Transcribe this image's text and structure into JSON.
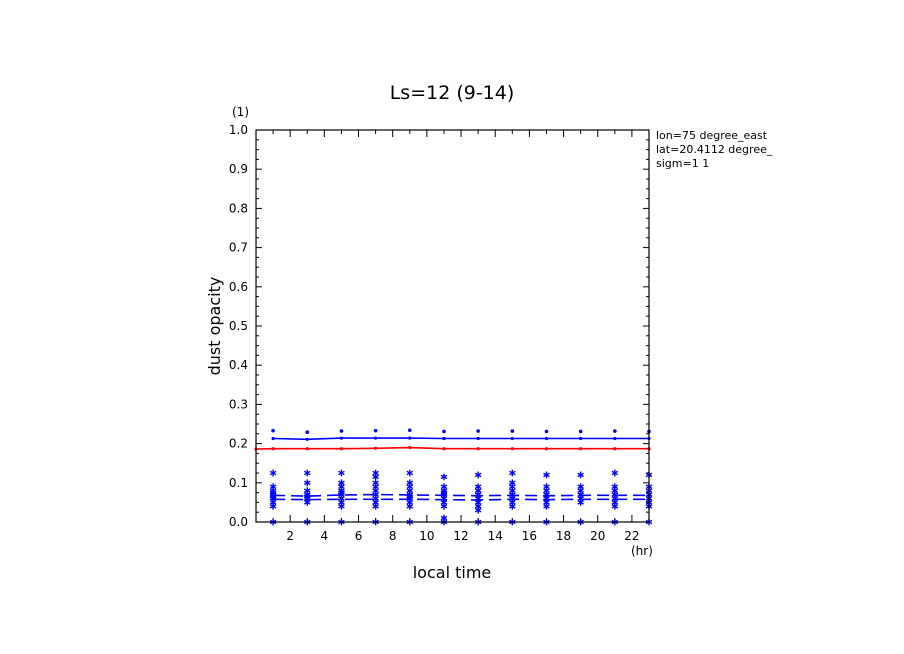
{
  "chart_data": {
    "type": "line",
    "title": "Ls=12 (9-14)",
    "xlabel": "local time",
    "ylabel": "dust opacity",
    "x_unit": "(hr)",
    "y_unit": "(1)",
    "xlim": [
      0,
      23
    ],
    "ylim": [
      0,
      1.0
    ],
    "x_ticks": [
      2,
      4,
      6,
      8,
      10,
      12,
      14,
      16,
      18,
      20,
      22
    ],
    "y_ticks": [
      "0.0",
      "0.1",
      "0.2",
      "0.3",
      "0.4",
      "0.5",
      "0.6",
      "0.7",
      "0.8",
      "0.9",
      "1.0"
    ],
    "info": [
      "lon=75 degree_east",
      "lat=20.4112 degree_",
      "sigm=1 1"
    ],
    "colors": {
      "blue": "#0000ff",
      "red": "#ff0000"
    },
    "series": [
      {
        "color": "#0000ff",
        "style": "solid",
        "x": [
          1,
          3,
          5,
          7,
          9,
          11,
          13,
          15,
          17,
          19,
          21,
          23
        ],
        "y": [
          0.213,
          0.211,
          0.214,
          0.214,
          0.214,
          0.213,
          0.213,
          0.213,
          0.213,
          0.213,
          0.213,
          0.213
        ]
      },
      {
        "color": "#ff0000",
        "style": "solid",
        "x": [
          0,
          1,
          3,
          5,
          7,
          9,
          11,
          13,
          15,
          17,
          19,
          21,
          23
        ],
        "y": [
          0.186,
          0.187,
          0.187,
          0.187,
          0.188,
          0.19,
          0.187,
          0.187,
          0.187,
          0.187,
          0.187,
          0.187,
          0.187
        ]
      },
      {
        "color": "#0000ff",
        "style": "dashed",
        "x": [
          1,
          3,
          5,
          7,
          9,
          11,
          13,
          15,
          17,
          19,
          21,
          23
        ],
        "y": [
          0.068,
          0.066,
          0.069,
          0.07,
          0.069,
          0.068,
          0.067,
          0.068,
          0.067,
          0.068,
          0.068,
          0.068
        ]
      },
      {
        "color": "#0000ff",
        "style": "dashed",
        "x": [
          1,
          3,
          5,
          7,
          9,
          11,
          13,
          15,
          17,
          19,
          21,
          23
        ],
        "y": [
          0.058,
          0.057,
          0.058,
          0.058,
          0.058,
          0.057,
          0.056,
          0.058,
          0.057,
          0.058,
          0.058,
          0.058
        ]
      }
    ],
    "upper_markers": {
      "x": [
        1,
        3,
        5,
        7,
        9,
        11,
        13,
        15,
        17,
        19,
        21,
        23
      ],
      "y": [
        0.233,
        0.229,
        0.232,
        0.233,
        0.234,
        0.231,
        0.232,
        0.232,
        0.231,
        0.231,
        0.232,
        0.231
      ]
    },
    "scatter": {
      "x": [
        1,
        3,
        5,
        7,
        9,
        11,
        13,
        15,
        17,
        19,
        21,
        23
      ],
      "y": [
        [
          0.0,
          0.04,
          0.05,
          0.06,
          0.065,
          0.07,
          0.075,
          0.08,
          0.09,
          0.125
        ],
        [
          0.0,
          0.05,
          0.06,
          0.065,
          0.07,
          0.08,
          0.1,
          0.125
        ],
        [
          0.0,
          0.04,
          0.05,
          0.06,
          0.07,
          0.075,
          0.08,
          0.09,
          0.1,
          0.125
        ],
        [
          0.0,
          0.04,
          0.05,
          0.06,
          0.07,
          0.08,
          0.09,
          0.1,
          0.115,
          0.125
        ],
        [
          0.0,
          0.04,
          0.05,
          0.06,
          0.065,
          0.07,
          0.08,
          0.09,
          0.1,
          0.125
        ],
        [
          0.0,
          0.01,
          0.04,
          0.05,
          0.06,
          0.07,
          0.075,
          0.08,
          0.09,
          0.115
        ],
        [
          0.0,
          0.03,
          0.04,
          0.05,
          0.06,
          0.07,
          0.08,
          0.09,
          0.12
        ],
        [
          0.0,
          0.04,
          0.05,
          0.06,
          0.07,
          0.08,
          0.09,
          0.1,
          0.125
        ],
        [
          0.0,
          0.04,
          0.05,
          0.06,
          0.07,
          0.08,
          0.09,
          0.12
        ],
        [
          0.0,
          0.05,
          0.06,
          0.07,
          0.08,
          0.09,
          0.12
        ],
        [
          0.0,
          0.04,
          0.05,
          0.06,
          0.07,
          0.08,
          0.09,
          0.125
        ],
        [
          0.0,
          0.04,
          0.05,
          0.06,
          0.07,
          0.08,
          0.09,
          0.12
        ]
      ]
    }
  }
}
